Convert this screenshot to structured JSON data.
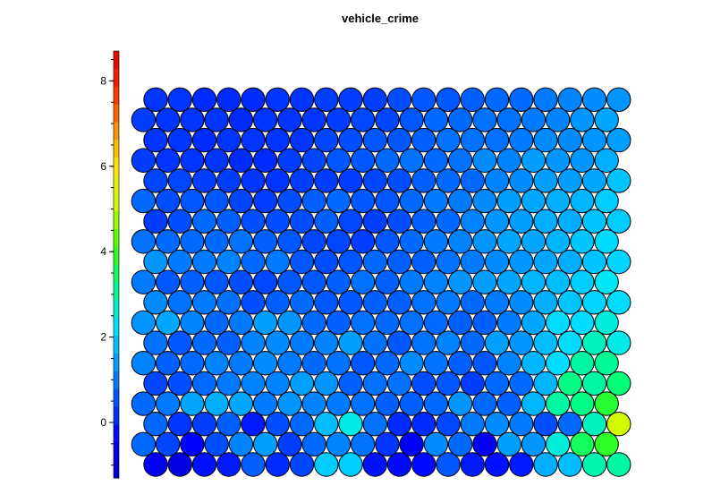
{
  "chart_data": {
    "type": "heatmap",
    "title": "vehicle_crime",
    "layout": "hexagonal",
    "colorscale": [
      "#0000c8",
      "#0000ff",
      "#0050ff",
      "#00a0ff",
      "#00e6ff",
      "#00ff80",
      "#40ff00",
      "#c8ff00",
      "#ffe600",
      "#ff8c00",
      "#ff2800",
      "#e00000"
    ],
    "colorbar": {
      "range": [
        -1.3,
        8.7
      ],
      "ticks": [
        0,
        2,
        4,
        6,
        8
      ]
    },
    "grid": [
      [
        -0.6,
        -0.9,
        -0.2,
        -0.1,
        0.7,
        0.1,
        0.4,
        2.0,
        2.0,
        -0.2,
        -0.3,
        -0.3,
        0.6,
        -0.1,
        -0.2,
        -0.1,
        1.6,
        1.8,
        2.9,
        3.0
      ],
      [
        0.8,
        0.4,
        -0.4,
        0.5,
        1.1,
        1.4,
        0.3,
        0.8,
        1.1,
        0.9,
        0.2,
        -0.5,
        1.2,
        0.8,
        -0.6,
        1.4,
        1.3,
        2.6,
        3.5,
        3.9
      ],
      [
        0.8,
        0.2,
        0.3,
        0.7,
        -0.1,
        0.5,
        0.8,
        1.8,
        2.5,
        0.9,
        0.1,
        0.1,
        0.4,
        1.0,
        1.2,
        1.0,
        0.5,
        0.8,
        2.8,
        5.2
      ],
      [
        0.8,
        1.0,
        1.5,
        1.6,
        1.5,
        1.0,
        1.3,
        1.1,
        1.0,
        0.9,
        0.7,
        0.7,
        0.8,
        1.3,
        0.8,
        0.7,
        1.7,
        3.0,
        3.2,
        3.8
      ],
      [
        0.4,
        0.5,
        0.8,
        1.0,
        1.1,
        1.1,
        1.4,
        1.3,
        0.7,
        0.9,
        0.9,
        0.5,
        0.6,
        0.3,
        0.8,
        0.8,
        1.7,
        3.2,
        3.0,
        3.3
      ],
      [
        1.1,
        0.7,
        0.8,
        1.1,
        1.0,
        1.2,
        1.0,
        0.8,
        0.9,
        0.6,
        0.8,
        1.2,
        0.9,
        0.7,
        0.6,
        1.1,
        1.7,
        2.2,
        3.0,
        3.1
      ],
      [
        0.9,
        0.6,
        0.8,
        0.7,
        1.1,
        1.2,
        1.0,
        1.1,
        1.4,
        0.9,
        0.6,
        0.9,
        1.1,
        0.8,
        1.4,
        1.3,
        1.8,
        2.2,
        2.8,
        2.5
      ],
      [
        1.3,
        1.5,
        1.1,
        0.8,
        1.0,
        1.4,
        1.3,
        0.8,
        0.7,
        0.9,
        0.8,
        0.9,
        0.8,
        0.7,
        0.7,
        1.0,
        1.5,
        2.2,
        2.2,
        2.6
      ],
      [
        1.2,
        0.9,
        1.0,
        0.9,
        0.5,
        0.7,
        0.8,
        0.6,
        0.6,
        0.7,
        0.7,
        0.9,
        1.0,
        0.8,
        1.0,
        1.2,
        1.6,
        1.9,
        2.1,
        2.2
      ],
      [
        1.0,
        0.6,
        0.7,
        0.6,
        0.5,
        0.4,
        0.6,
        0.6,
        0.7,
        0.9,
        0.7,
        1.0,
        1.1,
        1.3,
        1.4,
        1.5,
        1.7,
        1.8,
        2.0,
        2.4
      ],
      [
        1.3,
        1.0,
        1.0,
        1.1,
        0.8,
        1.0,
        0.6,
        0.5,
        0.6,
        0.8,
        0.7,
        0.7,
        0.9,
        1.0,
        1.2,
        1.3,
        1.5,
        1.6,
        1.9,
        2.1
      ],
      [
        0.9,
        0.8,
        0.8,
        0.8,
        0.9,
        0.7,
        0.6,
        0.4,
        0.4,
        0.3,
        0.6,
        0.8,
        1.0,
        1.1,
        1.3,
        1.5,
        1.5,
        1.7,
        1.9,
        2.2
      ],
      [
        0.3,
        0.5,
        0.8,
        0.7,
        0.5,
        0.5,
        0.5,
        0.7,
        0.4,
        0.3,
        0.5,
        0.7,
        0.8,
        1.1,
        1.3,
        1.4,
        1.6,
        1.6,
        1.9,
        2.0
      ],
      [
        0.8,
        0.5,
        0.6,
        0.6,
        0.4,
        0.3,
        0.5,
        0.7,
        0.8,
        0.6,
        0.6,
        0.8,
        1.0,
        1.0,
        1.2,
        1.4,
        1.5,
        1.6,
        1.7,
        2.0
      ],
      [
        0.4,
        0.4,
        0.3,
        0.3,
        0.2,
        0.2,
        0.3,
        0.3,
        0.3,
        0.4,
        0.5,
        0.7,
        0.8,
        0.8,
        1.1,
        1.2,
        1.4,
        1.4,
        1.5,
        1.9
      ],
      [
        0.3,
        0.2,
        0.2,
        0.2,
        0.1,
        0.1,
        0.3,
        0.4,
        0.6,
        0.6,
        0.8,
        0.9,
        0.8,
        0.9,
        1.2,
        1.1,
        1.4,
        1.3,
        1.3,
        1.6
      ],
      [
        0.2,
        0.2,
        0.1,
        0.2,
        0.2,
        0.2,
        0.2,
        0.4,
        0.5,
        0.6,
        0.6,
        0.7,
        0.9,
        0.9,
        0.9,
        1.0,
        1.2,
        1.2,
        1.3,
        1.4
      ],
      [
        0.3,
        0.2,
        0.2,
        0.2,
        0.1,
        0.2,
        0.2,
        0.2,
        0.3,
        0.4,
        0.4,
        0.6,
        0.8,
        0.8,
        0.9,
        0.9,
        1.0,
        1.1,
        1.3,
        1.5
      ],
      [
        0.2,
        0.2,
        0.1,
        0.1,
        0.1,
        0.2,
        0.2,
        0.3,
        0.3,
        0.3,
        0.5,
        0.6,
        0.6,
        0.7,
        0.8,
        0.8,
        1.0,
        1.1,
        1.2,
        1.3
      ]
    ]
  }
}
